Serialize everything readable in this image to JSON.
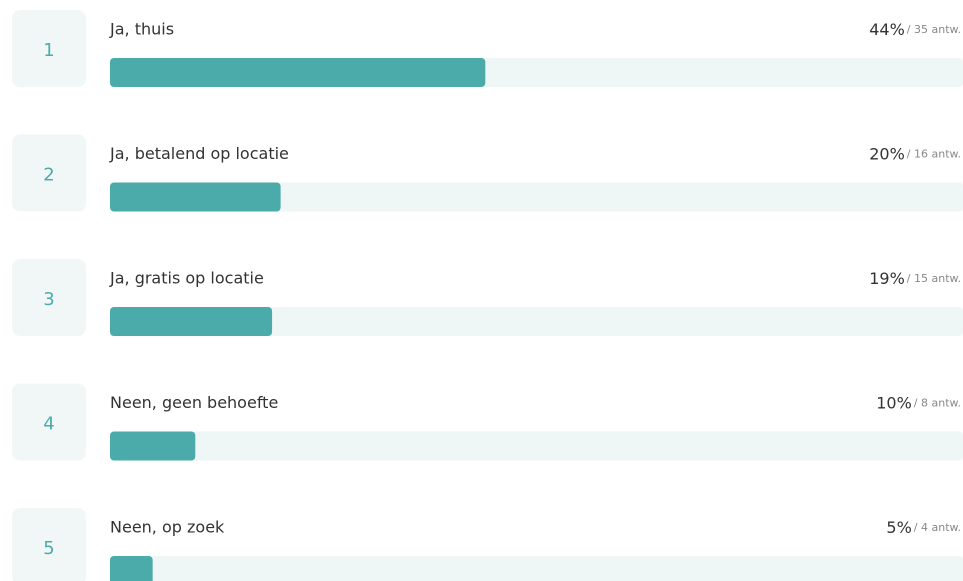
{
  "chart_data": {
    "type": "bar",
    "ranks": [
      1,
      2,
      3,
      4,
      5
    ],
    "categories": [
      "Ja, thuis",
      "Ja, betalend op locatie",
      "Ja, gratis op locatie",
      "Neen, geen behoefte",
      "Neen, op zoek"
    ],
    "values": [
      44,
      20,
      19,
      10,
      5
    ],
    "value_labels": [
      "44%",
      "20%",
      "19%",
      "10%",
      "5%"
    ],
    "count_labels": [
      "/ 35 antw.",
      "/ 16 antw.",
      "/ 15 antw.",
      "/ 8 antw.",
      "/ 4 antw."
    ],
    "color": "#4aabaa",
    "xlim": [
      0,
      100
    ]
  }
}
